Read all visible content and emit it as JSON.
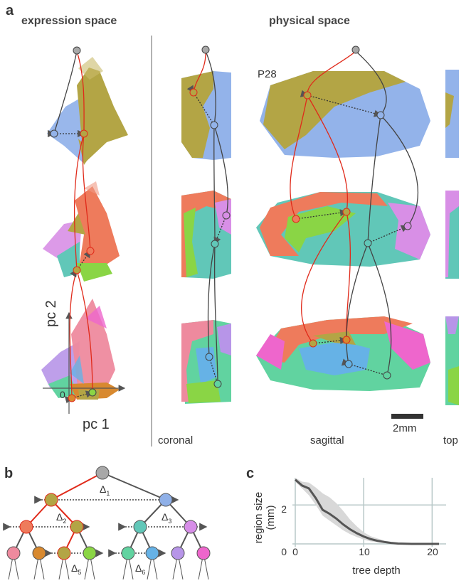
{
  "panels": {
    "a": {
      "letter": "a",
      "expression_title": "expression space",
      "physical_title": "physical space",
      "axis_pc2": "pc 2",
      "axis_pc1": "pc 1",
      "origin": "0",
      "age_label": "P28",
      "views": [
        "coronal",
        "sagittal",
        "top"
      ],
      "scale_bar": "2mm"
    },
    "b": {
      "letter": "b",
      "delta_symbol": "Δ",
      "delta_indices": [
        "1",
        "2",
        "3",
        "5",
        "6"
      ],
      "node_colors": {
        "root": "#a8a8a8",
        "level1": [
          "#b3a545",
          "#8fb0e8"
        ],
        "level2": [
          "#ee7b5c",
          "#b3a545",
          "#61c7b8",
          "#d78ee8"
        ],
        "level3": [
          "#ee8a9e",
          "#d8892f",
          "#b3a545",
          "#8ad545",
          "#61d3a0",
          "#66b2e6",
          "#b795e8",
          "#ee66cc"
        ]
      }
    },
    "c": {
      "letter": "c",
      "ylabel_line1": "region size",
      "ylabel_line2": "(mm)",
      "xlabel": "tree depth",
      "xticks": [
        "0",
        "10",
        "20"
      ],
      "yticks": [
        "0",
        "2"
      ]
    }
  },
  "colors": {
    "olive": "#b3a545",
    "blue": "#8fb0e8",
    "red_line": "#e02a1a",
    "dark_line": "#444444",
    "grid": "#b8c8c8",
    "band": "#d8d8d8"
  },
  "chart_data": {
    "type": "line",
    "xlabel": "tree depth",
    "ylabel": "region size (mm)",
    "xlim": [
      0,
      21
    ],
    "ylim": [
      0,
      3.4
    ],
    "xticks": [
      0,
      10,
      20
    ],
    "yticks": [
      0,
      2
    ],
    "grid": true,
    "series": [
      {
        "x": [
          0,
          1,
          2,
          3,
          4,
          5,
          6,
          7,
          8,
          9,
          10,
          11,
          12,
          13,
          14,
          15,
          16,
          17,
          18,
          19,
          20,
          21
        ],
        "values": [
          3.3,
          3.0,
          2.85,
          2.35,
          1.75,
          1.55,
          1.3,
          1.0,
          0.75,
          0.55,
          0.38,
          0.25,
          0.16,
          0.1,
          0.05,
          0.02,
          0.01,
          0.0,
          0.0,
          0.0,
          0.0,
          0.0
        ],
        "lower": [
          3.2,
          2.85,
          2.5,
          2.0,
          1.45,
          1.2,
          0.95,
          0.7,
          0.5,
          0.35,
          0.22,
          0.13,
          0.08,
          0.04,
          0.02,
          0.0,
          0.0,
          0.0,
          0.0,
          0.0,
          0.0,
          0.0
        ],
        "upper": [
          3.4,
          3.2,
          3.15,
          2.9,
          2.6,
          2.4,
          2.1,
          1.7,
          1.25,
          0.9,
          0.6,
          0.4,
          0.28,
          0.18,
          0.1,
          0.05,
          0.02,
          0.0,
          0.0,
          0.0,
          0.0,
          0.0
        ]
      }
    ]
  }
}
